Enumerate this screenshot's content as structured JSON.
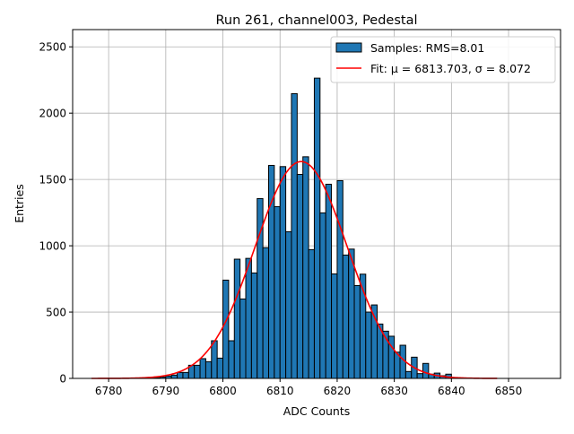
{
  "chart_data": {
    "type": "bar",
    "title": "Run 261, channel003, Pedestal",
    "xlabel": "ADC Counts",
    "ylabel": "Entries",
    "xlim": [
      6773.7,
      6859.1
    ],
    "ylim": [
      0,
      2630
    ],
    "xticks": [
      6780,
      6790,
      6800,
      6810,
      6820,
      6830,
      6840,
      6850
    ],
    "yticks": [
      0,
      500,
      1000,
      1500,
      2000,
      2500
    ],
    "grid": true,
    "legend_position": "top-right",
    "bin_width": 1,
    "bins": [
      6787,
      6788,
      6789,
      6790,
      6791,
      6792,
      6793,
      6794,
      6795,
      6796,
      6797,
      6798,
      6799,
      6800,
      6801,
      6802,
      6803,
      6804,
      6805,
      6806,
      6807,
      6808,
      6809,
      6810,
      6811,
      6812,
      6813,
      6814,
      6815,
      6816,
      6817,
      6818,
      6819,
      6820,
      6821,
      6822,
      6823,
      6824,
      6825,
      6826,
      6827,
      6828,
      6829,
      6830,
      6831,
      6832,
      6833,
      6834,
      6835,
      6836,
      6837,
      6838,
      6839,
      6840
    ],
    "values": [
      3,
      5,
      10,
      18,
      25,
      45,
      45,
      99,
      99,
      149,
      126,
      284,
      153,
      741,
      284,
      899,
      599,
      905,
      795,
      1356,
      986,
      1606,
      1295,
      1597,
      1106,
      2147,
      1538,
      1671,
      971,
      2264,
      1248,
      1464,
      788,
      1491,
      930,
      975,
      700,
      786,
      500,
      554,
      410,
      356,
      318,
      198,
      250,
      52,
      160,
      36,
      113,
      32,
      40,
      20,
      32,
      5
    ],
    "series": [
      {
        "name": "Samples: RMS=8.01",
        "kind": "histogram",
        "color": "#1f77b4"
      },
      {
        "name": "Fit: μ = 6813.703, σ = 8.072",
        "kind": "gaussian",
        "color": "#ff0000",
        "mu": 6813.703,
        "sigma": 8.072,
        "amplitude": 1635,
        "x_range": [
          6777,
          6848
        ]
      }
    ]
  }
}
